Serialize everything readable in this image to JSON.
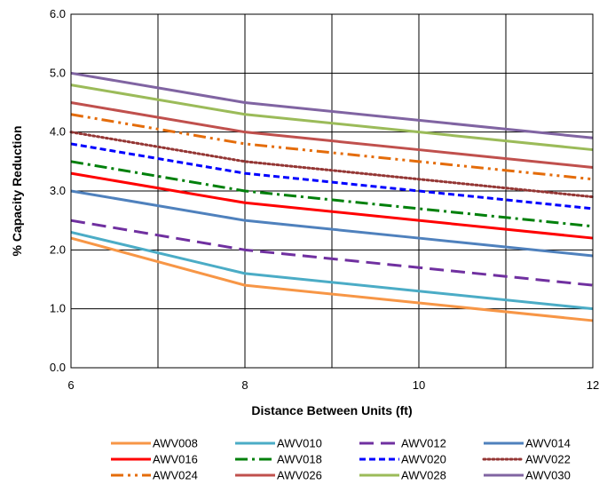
{
  "chart_data": {
    "type": "line",
    "title": "",
    "xlabel": "Distance Between Units (ft)",
    "ylabel": "% Capacity Reduction",
    "xlim": [
      6,
      12
    ],
    "ylim": [
      0,
      6
    ],
    "x_ticks": [
      "6",
      "8",
      "10",
      "12"
    ],
    "y_ticks": [
      "0.0",
      "1.0",
      "2.0",
      "3.0",
      "4.0",
      "5.0",
      "6.0"
    ],
    "grid": true,
    "legend_position": "bottom",
    "series": [
      {
        "name": "AWV008",
        "color": "#F79646",
        "dash": "solid",
        "x": [
          6,
          8,
          10,
          12
        ],
        "values": [
          2.2,
          1.4,
          1.1,
          0.8
        ]
      },
      {
        "name": "AWV010",
        "color": "#4BACC6",
        "dash": "solid",
        "x": [
          6,
          8,
          10,
          12
        ],
        "values": [
          2.3,
          1.6,
          1.3,
          1.0
        ]
      },
      {
        "name": "AWV012",
        "color": "#7030A0",
        "dash": "longdash",
        "x": [
          6,
          8,
          10,
          12
        ],
        "values": [
          2.5,
          2.0,
          1.7,
          1.4
        ]
      },
      {
        "name": "AWV014",
        "color": "#4F81BD",
        "dash": "solid",
        "x": [
          6,
          8,
          10,
          12
        ],
        "values": [
          3.0,
          2.5,
          2.2,
          1.9
        ]
      },
      {
        "name": "AWV016",
        "color": "#FF0000",
        "dash": "solid",
        "x": [
          6,
          8,
          10,
          12
        ],
        "values": [
          3.3,
          2.8,
          2.5,
          2.2
        ]
      },
      {
        "name": "AWV018",
        "color": "#00800B",
        "dash": "dashdot",
        "x": [
          6,
          8,
          10,
          12
        ],
        "values": [
          3.5,
          3.0,
          2.7,
          2.4
        ]
      },
      {
        "name": "AWV020",
        "color": "#0000FF",
        "dash": "dash",
        "x": [
          6,
          8,
          10,
          12
        ],
        "values": [
          3.8,
          3.3,
          3.0,
          2.7
        ]
      },
      {
        "name": "AWV022",
        "color": "#943634",
        "dash": "dot",
        "x": [
          6,
          8,
          10,
          12
        ],
        "values": [
          4.0,
          3.5,
          3.2,
          2.9
        ]
      },
      {
        "name": "AWV024",
        "color": "#E46C0A",
        "dash": "dashdotdot",
        "x": [
          6,
          8,
          10,
          12
        ],
        "values": [
          4.3,
          3.8,
          3.5,
          3.2
        ]
      },
      {
        "name": "AWV026",
        "color": "#C0504D",
        "dash": "solid",
        "x": [
          6,
          8,
          10,
          12
        ],
        "values": [
          4.5,
          4.0,
          3.7,
          3.4
        ]
      },
      {
        "name": "AWV028",
        "color": "#9BBB59",
        "dash": "solid",
        "x": [
          6,
          8,
          10,
          12
        ],
        "values": [
          4.8,
          4.3,
          4.0,
          3.7
        ]
      },
      {
        "name": "AWV030",
        "color": "#8064A2",
        "dash": "solid",
        "x": [
          6,
          8,
          10,
          12
        ],
        "values": [
          5.0,
          4.5,
          4.2,
          3.9
        ]
      }
    ]
  }
}
